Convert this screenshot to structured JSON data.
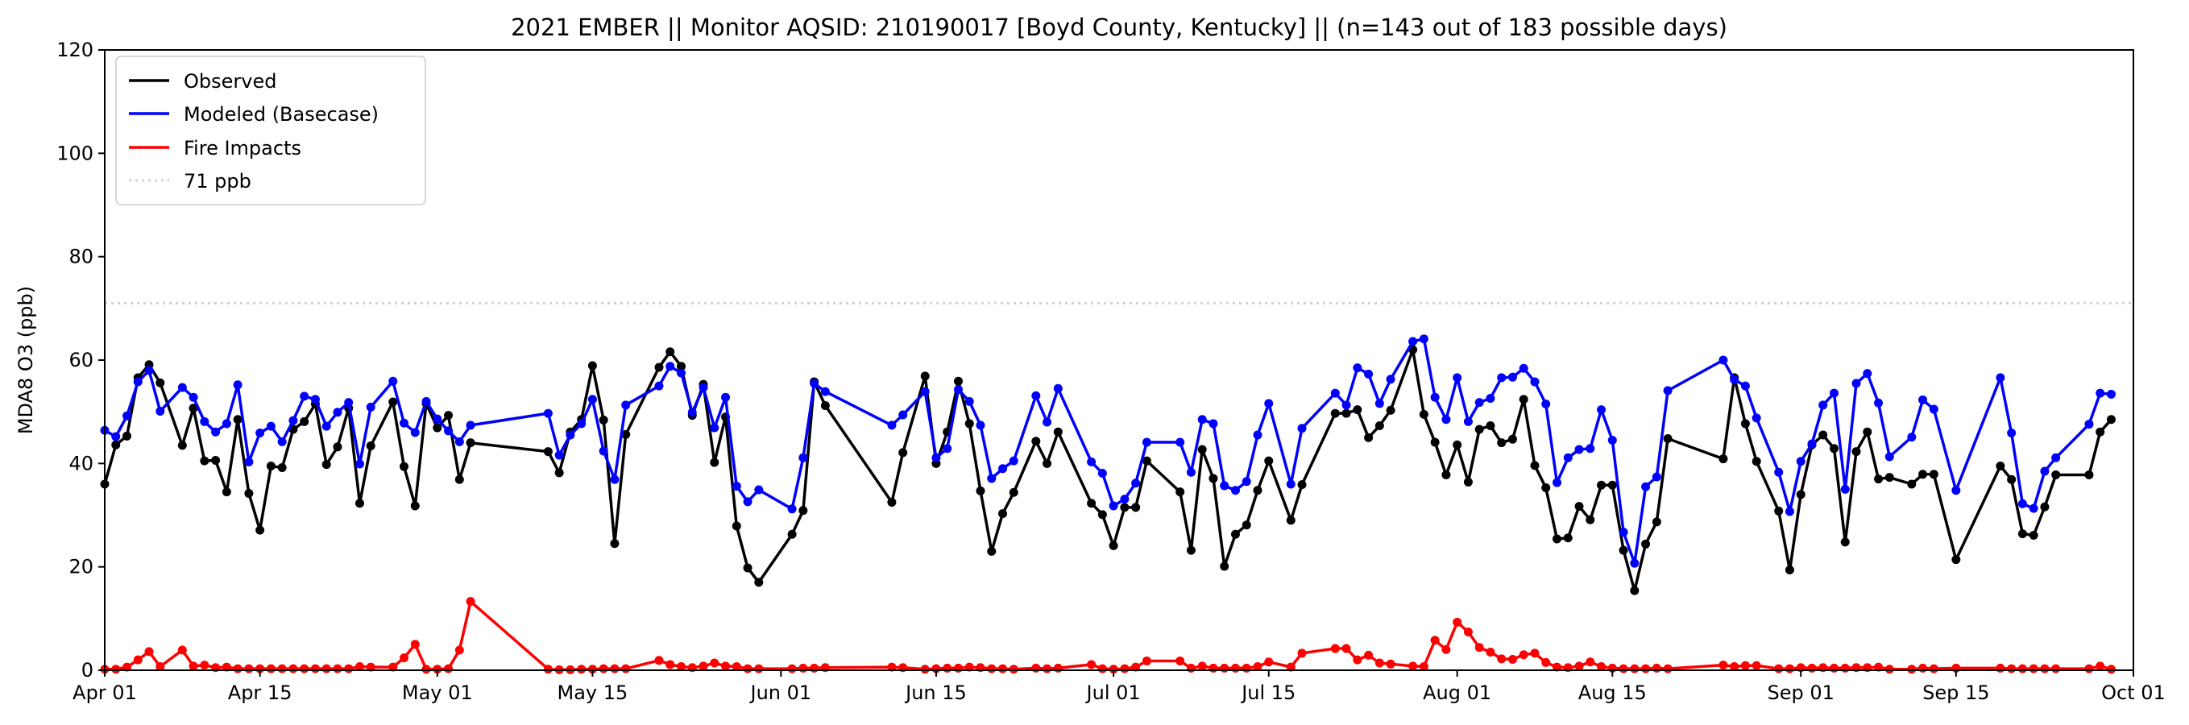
{
  "chart_data": {
    "type": "line",
    "title": "2021 EMBER || Monitor AQSID: 210190017 [Boyd County, Kentucky] || (n=143 out of 183 possible days)",
    "xlabel": "",
    "ylabel": "MDA8 O3 (ppb)",
    "x_unit": "days since Apr 01",
    "xlim": [
      0,
      183
    ],
    "ylim": [
      0,
      120
    ],
    "yticks": [
      0,
      20,
      40,
      60,
      80,
      100,
      120
    ],
    "xticks": [
      {
        "day": 0,
        "label": "Apr 01"
      },
      {
        "day": 14,
        "label": "Apr 15"
      },
      {
        "day": 30,
        "label": "May 01"
      },
      {
        "day": 44,
        "label": "May 15"
      },
      {
        "day": 61,
        "label": "Jun 01"
      },
      {
        "day": 75,
        "label": "Jun 15"
      },
      {
        "day": 91,
        "label": "Jul 01"
      },
      {
        "day": 105,
        "label": "Jul 15"
      },
      {
        "day": 122,
        "label": "Aug 01"
      },
      {
        "day": 136,
        "label": "Aug 15"
      },
      {
        "day": 153,
        "label": "Sep 01"
      },
      {
        "day": 167,
        "label": "Sep 15"
      },
      {
        "day": 183,
        "label": "Oct 01"
      }
    ],
    "legend_position": "top-left",
    "grid": false,
    "x": [
      0,
      1,
      2,
      3,
      4,
      5,
      7,
      8,
      9,
      10,
      11,
      12,
      13,
      14,
      15,
      16,
      17,
      18,
      19,
      20,
      21,
      22,
      23,
      24,
      26,
      27,
      28,
      29,
      30,
      31,
      32,
      33,
      40,
      41,
      42,
      43,
      44,
      45,
      46,
      47,
      50,
      51,
      52,
      53,
      54,
      55,
      56,
      57,
      58,
      59,
      62,
      63,
      64,
      65,
      71,
      72,
      74,
      75,
      76,
      77,
      78,
      79,
      80,
      81,
      82,
      84,
      85,
      86,
      89,
      90,
      91,
      92,
      93,
      94,
      97,
      98,
      99,
      100,
      101,
      102,
      103,
      104,
      105,
      107,
      108,
      111,
      112,
      113,
      114,
      115,
      116,
      118,
      119,
      120,
      121,
      122,
      123,
      124,
      125,
      126,
      127,
      128,
      129,
      130,
      131,
      132,
      133,
      134,
      135,
      136,
      137,
      138,
      139,
      140,
      141,
      146,
      147,
      148,
      149,
      151,
      152,
      153,
      154,
      155,
      156,
      157,
      158,
      159,
      160,
      161,
      163,
      164,
      165,
      167,
      171,
      172,
      173,
      174,
      175,
      176,
      179,
      180,
      181
    ],
    "series": [
      {
        "name": "Observed",
        "color": "#000000",
        "values": [
          36.0,
          43.6,
          45.3,
          56.6,
          59.1,
          55.6,
          43.5,
          50.7,
          40.5,
          40.6,
          34.5,
          48.5,
          34.2,
          27.1,
          39.5,
          39.2,
          46.6,
          48.1,
          51.5,
          39.8,
          43.2,
          50.7,
          32.3,
          43.4,
          51.9,
          39.4,
          31.8,
          51.6,
          46.9,
          49.3,
          36.9,
          44.0,
          42.3,
          38.2,
          46.1,
          48.5,
          58.9,
          48.4,
          24.5,
          45.6,
          58.6,
          61.6,
          58.8,
          49.3,
          55.3,
          40.2,
          49.0,
          27.9,
          19.8,
          17.0,
          26.3,
          30.9,
          55.8,
          51.2,
          32.5,
          42.1,
          56.9,
          40.0,
          46.1,
          55.9,
          47.7,
          34.7,
          23.0,
          30.3,
          34.4,
          44.3,
          40.0,
          46.1,
          32.3,
          30.1,
          24.1,
          31.5,
          31.5,
          40.5,
          34.5,
          23.2,
          42.7,
          37.1,
          20.1,
          26.3,
          28.1,
          34.8,
          40.5,
          29.0,
          35.9,
          49.7,
          49.7,
          50.4,
          45.0,
          47.3,
          50.3,
          62.0,
          49.5,
          44.1,
          37.8,
          43.6,
          36.4,
          46.6,
          47.3,
          44.0,
          44.7,
          52.4,
          39.6,
          35.3,
          25.4,
          25.6,
          31.7,
          29.1,
          35.8,
          35.8,
          23.2,
          15.4,
          24.4,
          28.7,
          44.8,
          40.9,
          56.6,
          47.7,
          40.4,
          30.8,
          19.4,
          34.0,
          43.6,
          45.5,
          42.9,
          24.8,
          42.3,
          46.1,
          37.0,
          37.3,
          36.0,
          37.9,
          37.9,
          21.4,
          39.5,
          36.9,
          26.4,
          26.1,
          31.6,
          37.8,
          37.8,
          46.1,
          48.5
        ]
      },
      {
        "name": "Modeled (Basecase)",
        "color": "#0000ff",
        "values": [
          46.4,
          45.2,
          49.2,
          55.8,
          58.0,
          50.1,
          54.7,
          52.8,
          48.1,
          46.1,
          47.7,
          55.2,
          40.3,
          45.9,
          47.2,
          44.2,
          48.3,
          53.0,
          52.4,
          47.2,
          49.9,
          51.8,
          39.9,
          50.9,
          55.9,
          47.8,
          46.0,
          52.0,
          48.6,
          46.3,
          44.2,
          47.4,
          49.7,
          41.6,
          45.5,
          47.7,
          52.4,
          42.4,
          36.9,
          51.3,
          55.0,
          58.8,
          57.5,
          49.9,
          54.7,
          46.9,
          52.8,
          35.6,
          32.6,
          34.9,
          31.2,
          41.1,
          55.5,
          53.9,
          47.4,
          49.4,
          53.9,
          41.1,
          42.9,
          54.3,
          52.0,
          47.4,
          37.1,
          39.0,
          40.5,
          53.1,
          48.0,
          54.5,
          40.3,
          38.1,
          31.8,
          33.1,
          36.2,
          44.1,
          44.1,
          38.3,
          48.5,
          47.7,
          35.7,
          34.8,
          36.5,
          45.5,
          51.6,
          36.0,
          46.8,
          53.6,
          51.3,
          58.5,
          57.3,
          51.6,
          56.3,
          63.6,
          64.1,
          52.8,
          48.5,
          56.6,
          48.1,
          51.8,
          52.6,
          56.6,
          56.7,
          58.4,
          55.8,
          51.5,
          36.3,
          41.1,
          42.7,
          42.9,
          50.4,
          44.5,
          26.7,
          20.7,
          35.5,
          37.4,
          54.1,
          60.0,
          56.2,
          55.0,
          48.8,
          38.3,
          30.7,
          40.4,
          43.8,
          51.3,
          53.6,
          35.0,
          55.5,
          57.4,
          51.7,
          41.3,
          45.1,
          52.3,
          50.5,
          34.8,
          56.6,
          45.9,
          32.2,
          31.3,
          38.5,
          41.1,
          47.6,
          53.6,
          53.4
        ]
      },
      {
        "name": "Fire Impacts",
        "color": "#ff0000",
        "values": [
          0.2,
          0.2,
          0.6,
          2.0,
          3.6,
          0.7,
          3.9,
          0.8,
          1.0,
          0.5,
          0.6,
          0.3,
          0.3,
          0.3,
          0.3,
          0.3,
          0.3,
          0.3,
          0.3,
          0.3,
          0.3,
          0.3,
          0.7,
          0.6,
          0.6,
          2.4,
          5.0,
          0.2,
          0.2,
          0.3,
          3.9,
          13.3,
          0.2,
          0.1,
          0.1,
          0.2,
          0.2,
          0.3,
          0.3,
          0.3,
          1.9,
          1.1,
          0.7,
          0.5,
          0.8,
          1.4,
          0.8,
          0.7,
          0.3,
          0.3,
          0.3,
          0.4,
          0.4,
          0.5,
          0.6,
          0.5,
          0.2,
          0.3,
          0.4,
          0.4,
          0.6,
          0.5,
          0.3,
          0.3,
          0.2,
          0.4,
          0.3,
          0.4,
          1.1,
          0.3,
          0.2,
          0.3,
          0.6,
          1.8,
          1.8,
          0.4,
          0.8,
          0.4,
          0.4,
          0.4,
          0.4,
          0.7,
          1.6,
          0.6,
          3.3,
          4.2,
          4.2,
          2.0,
          2.9,
          1.4,
          1.2,
          0.8,
          0.7,
          5.8,
          4.0,
          9.3,
          7.4,
          4.4,
          3.5,
          2.2,
          2.1,
          3.0,
          3.3,
          1.5,
          0.6,
          0.5,
          0.8,
          1.6,
          0.7,
          0.4,
          0.3,
          0.3,
          0.3,
          0.4,
          0.3,
          1.0,
          0.7,
          0.9,
          0.9,
          0.3,
          0.3,
          0.5,
          0.4,
          0.5,
          0.4,
          0.4,
          0.5,
          0.5,
          0.6,
          0.2,
          0.2,
          0.4,
          0.3,
          0.4,
          0.4,
          0.3,
          0.3,
          0.3,
          0.3,
          0.3,
          0.3,
          0.8,
          0.2
        ]
      }
    ],
    "reference_line": {
      "name": "71 ppb",
      "value": 71,
      "color": "#d3d3d3",
      "style": "dotted"
    }
  }
}
